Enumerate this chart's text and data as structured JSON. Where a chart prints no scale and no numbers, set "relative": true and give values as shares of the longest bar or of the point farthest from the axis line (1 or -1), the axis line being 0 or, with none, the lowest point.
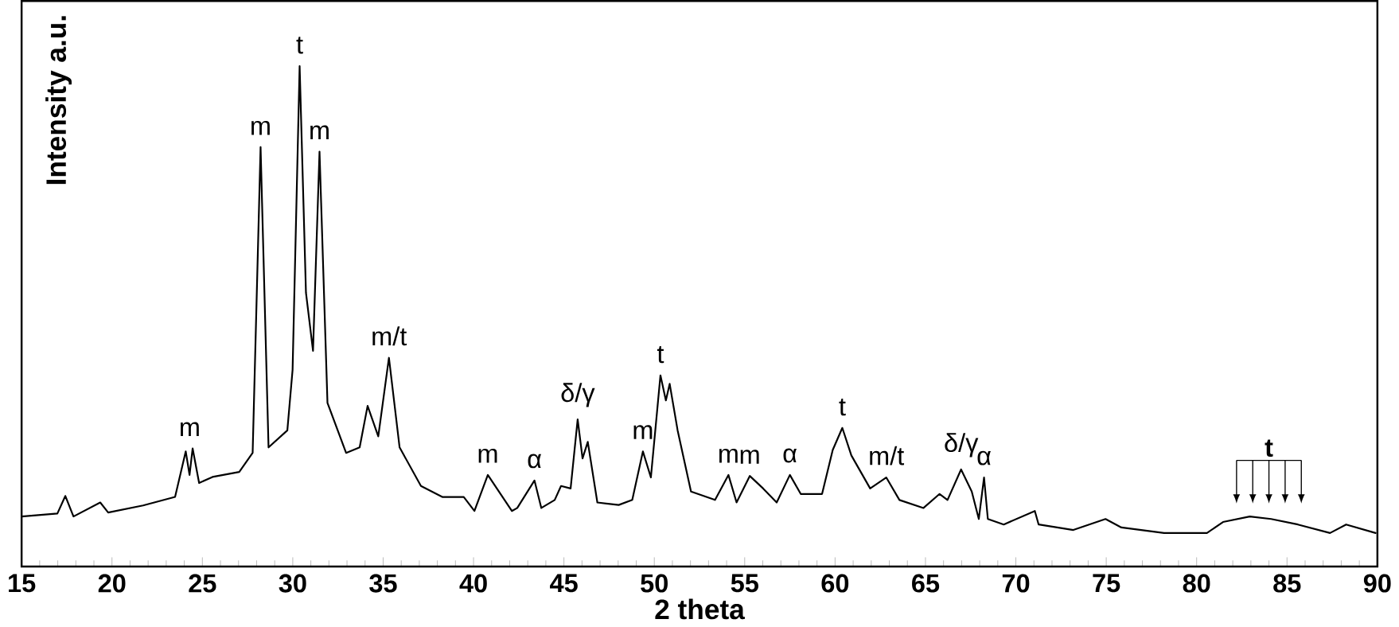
{
  "chart_data": {
    "type": "line",
    "relative": true,
    "xlabel": "2 theta",
    "ylabel": "Intensity a.u.",
    "color": "#000000",
    "xlim": [
      15,
      90
    ],
    "xticks": [
      15,
      20,
      25,
      30,
      35,
      40,
      45,
      50,
      55,
      60,
      65,
      70,
      75,
      80,
      85,
      90
    ],
    "x": [
      15.0,
      16.98,
      17.42,
      17.87,
      19.35,
      19.79,
      21.72,
      23.49,
      24.08,
      24.29,
      24.46,
      24.82,
      25.56,
      27.04,
      27.78,
      28.22,
      28.66,
      29.7,
      29.99,
      30.38,
      30.73,
      31.12,
      31.48,
      31.92,
      32.95,
      33.7,
      34.14,
      34.73,
      35.32,
      35.91,
      37.09,
      38.27,
      39.46,
      40.05,
      40.79,
      42.12,
      42.42,
      43.37,
      43.75,
      44.49,
      44.84,
      45.37,
      45.76,
      46.03,
      46.32,
      46.85,
      48.03,
      48.78,
      49.37,
      49.81,
      50.34,
      50.64,
      50.85,
      51.29,
      52.03,
      53.36,
      54.1,
      54.55,
      55.28,
      56.02,
      56.77,
      57.5,
      58.1,
      59.28,
      59.87,
      60.4,
      60.9,
      61.94,
      62.83,
      63.56,
      64.89,
      65.78,
      66.22,
      66.97,
      67.56,
      67.95,
      68.24,
      68.45,
      69.33,
      71.05,
      71.26,
      73.18,
      74.96,
      75.84,
      78.2,
      80.57,
      81.46,
      82.94,
      84.12,
      85.6,
      87.38,
      88.27,
      89.9
    ],
    "values": [
      0.1,
      0.106,
      0.141,
      0.1,
      0.128,
      0.108,
      0.122,
      0.139,
      0.23,
      0.183,
      0.236,
      0.167,
      0.179,
      0.189,
      0.227,
      0.838,
      0.238,
      0.272,
      0.393,
      1.0,
      0.547,
      0.431,
      0.829,
      0.327,
      0.227,
      0.238,
      0.321,
      0.26,
      0.417,
      0.238,
      0.161,
      0.139,
      0.139,
      0.111,
      0.183,
      0.111,
      0.117,
      0.172,
      0.117,
      0.133,
      0.161,
      0.156,
      0.294,
      0.216,
      0.249,
      0.128,
      0.123,
      0.133,
      0.23,
      0.178,
      0.382,
      0.332,
      0.365,
      0.272,
      0.15,
      0.133,
      0.183,
      0.128,
      0.181,
      0.156,
      0.128,
      0.183,
      0.145,
      0.145,
      0.233,
      0.277,
      0.222,
      0.156,
      0.178,
      0.133,
      0.117,
      0.145,
      0.133,
      0.194,
      0.15,
      0.095,
      0.178,
      0.095,
      0.084,
      0.111,
      0.084,
      0.073,
      0.095,
      0.078,
      0.067,
      0.067,
      0.089,
      0.1,
      0.095,
      0.084,
      0.067,
      0.084,
      0.067
    ],
    "annotations": [
      {
        "text": "m",
        "x": 24.3,
        "y": 0.236
      },
      {
        "text": "m",
        "x": 28.22,
        "y": 0.838
      },
      {
        "text": "t",
        "x": 30.38,
        "y": 1.0
      },
      {
        "text": "m",
        "x": 31.48,
        "y": 0.829
      },
      {
        "text": "m/t",
        "x": 35.32,
        "y": 0.417
      },
      {
        "text": "m",
        "x": 40.79,
        "y": 0.183
      },
      {
        "text": "α",
        "x": 43.37,
        "y": 0.172
      },
      {
        "text": "δ/γ",
        "x": 45.76,
        "y": 0.294
      },
      {
        "text": "m",
        "x": 49.37,
        "y": 0.23
      },
      {
        "text": "t",
        "x": 50.34,
        "y": 0.382
      },
      {
        "text": "m",
        "x": 54.1,
        "y": 0.183
      },
      {
        "text": "m",
        "x": 55.28,
        "y": 0.181
      },
      {
        "text": "α",
        "x": 57.5,
        "y": 0.183
      },
      {
        "text": "t",
        "x": 60.4,
        "y": 0.277
      },
      {
        "text": "m/t",
        "x": 62.83,
        "y": 0.178
      },
      {
        "text": "δ/γ",
        "x": 66.97,
        "y": 0.194
      },
      {
        "text": "α",
        "x": 68.24,
        "y": 0.178
      },
      {
        "text": "t",
        "x": 84.0,
        "y": 0.1
      }
    ]
  }
}
